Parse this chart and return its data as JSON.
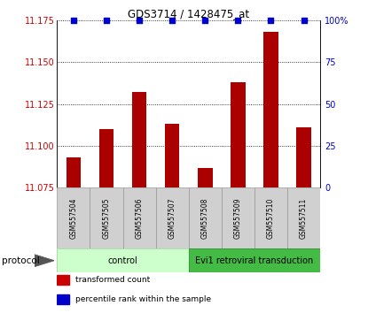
{
  "title": "GDS3714 / 1428475_at",
  "samples": [
    "GSM557504",
    "GSM557505",
    "GSM557506",
    "GSM557507",
    "GSM557508",
    "GSM557509",
    "GSM557510",
    "GSM557511"
  ],
  "red_values": [
    11.093,
    11.11,
    11.132,
    11.113,
    11.087,
    11.138,
    11.168,
    11.111
  ],
  "blue_values": [
    100,
    100,
    100,
    100,
    100,
    100,
    100,
    100
  ],
  "ylim_left": [
    11.075,
    11.175
  ],
  "ylim_right": [
    0,
    100
  ],
  "yticks_left": [
    11.075,
    11.1,
    11.125,
    11.15,
    11.175
  ],
  "yticks_right": [
    0,
    25,
    50,
    75,
    100
  ],
  "bar_color": "#aa0000",
  "dot_color": "#0000cc",
  "groups": [
    {
      "label": "control",
      "start": 0,
      "end": 3,
      "color": "#ccffcc",
      "border": "#aaddaa"
    },
    {
      "label": "Evi1 retroviral transduction",
      "start": 4,
      "end": 7,
      "color": "#44bb44",
      "border": "#339933"
    }
  ],
  "protocol_label": "protocol",
  "legend_items": [
    {
      "label": "transformed count",
      "color": "#cc0000"
    },
    {
      "label": "percentile rank within the sample",
      "color": "#0000cc"
    }
  ],
  "background_color": "#ffffff",
  "tick_label_color_left": "#cc0000",
  "tick_label_color_right": "#0000cc",
  "sample_bg": "#d0d0d0",
  "sample_border": "#999999"
}
